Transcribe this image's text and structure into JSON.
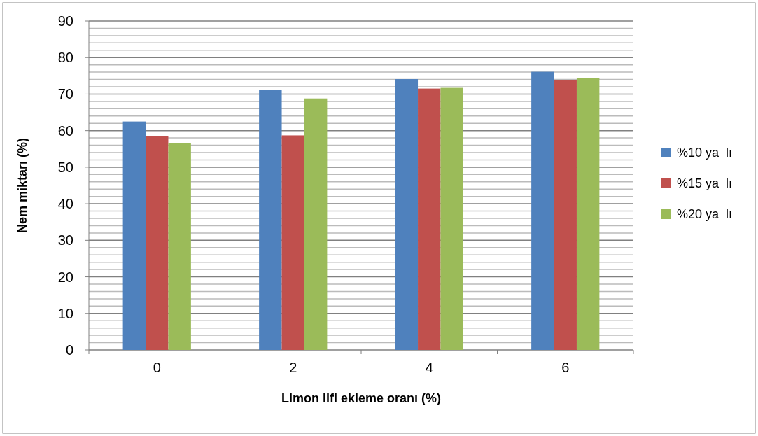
{
  "chart_data": {
    "type": "bar",
    "xlabel": "Limon lifi ekleme oranı (%)",
    "ylabel": "Nem miktarı  (%)",
    "categories": [
      "0",
      "2",
      "4",
      "6"
    ],
    "series": [
      {
        "name": "%10 ya  lı",
        "color": "#4f81bd",
        "values": [
          62.5,
          71.2,
          74.1,
          76.1
        ]
      },
      {
        "name": "%15 ya  lı",
        "color": "#c0504d",
        "values": [
          58.5,
          58.7,
          71.5,
          73.8
        ]
      },
      {
        "name": "%20 ya  lı",
        "color": "#9bbb59",
        "values": [
          56.5,
          68.8,
          71.7,
          74.3
        ]
      }
    ],
    "ylim": [
      0,
      90
    ],
    "yticks": [
      0,
      10,
      20,
      30,
      40,
      50,
      60,
      70,
      80,
      90
    ],
    "grid": "y",
    "legend": "right"
  }
}
